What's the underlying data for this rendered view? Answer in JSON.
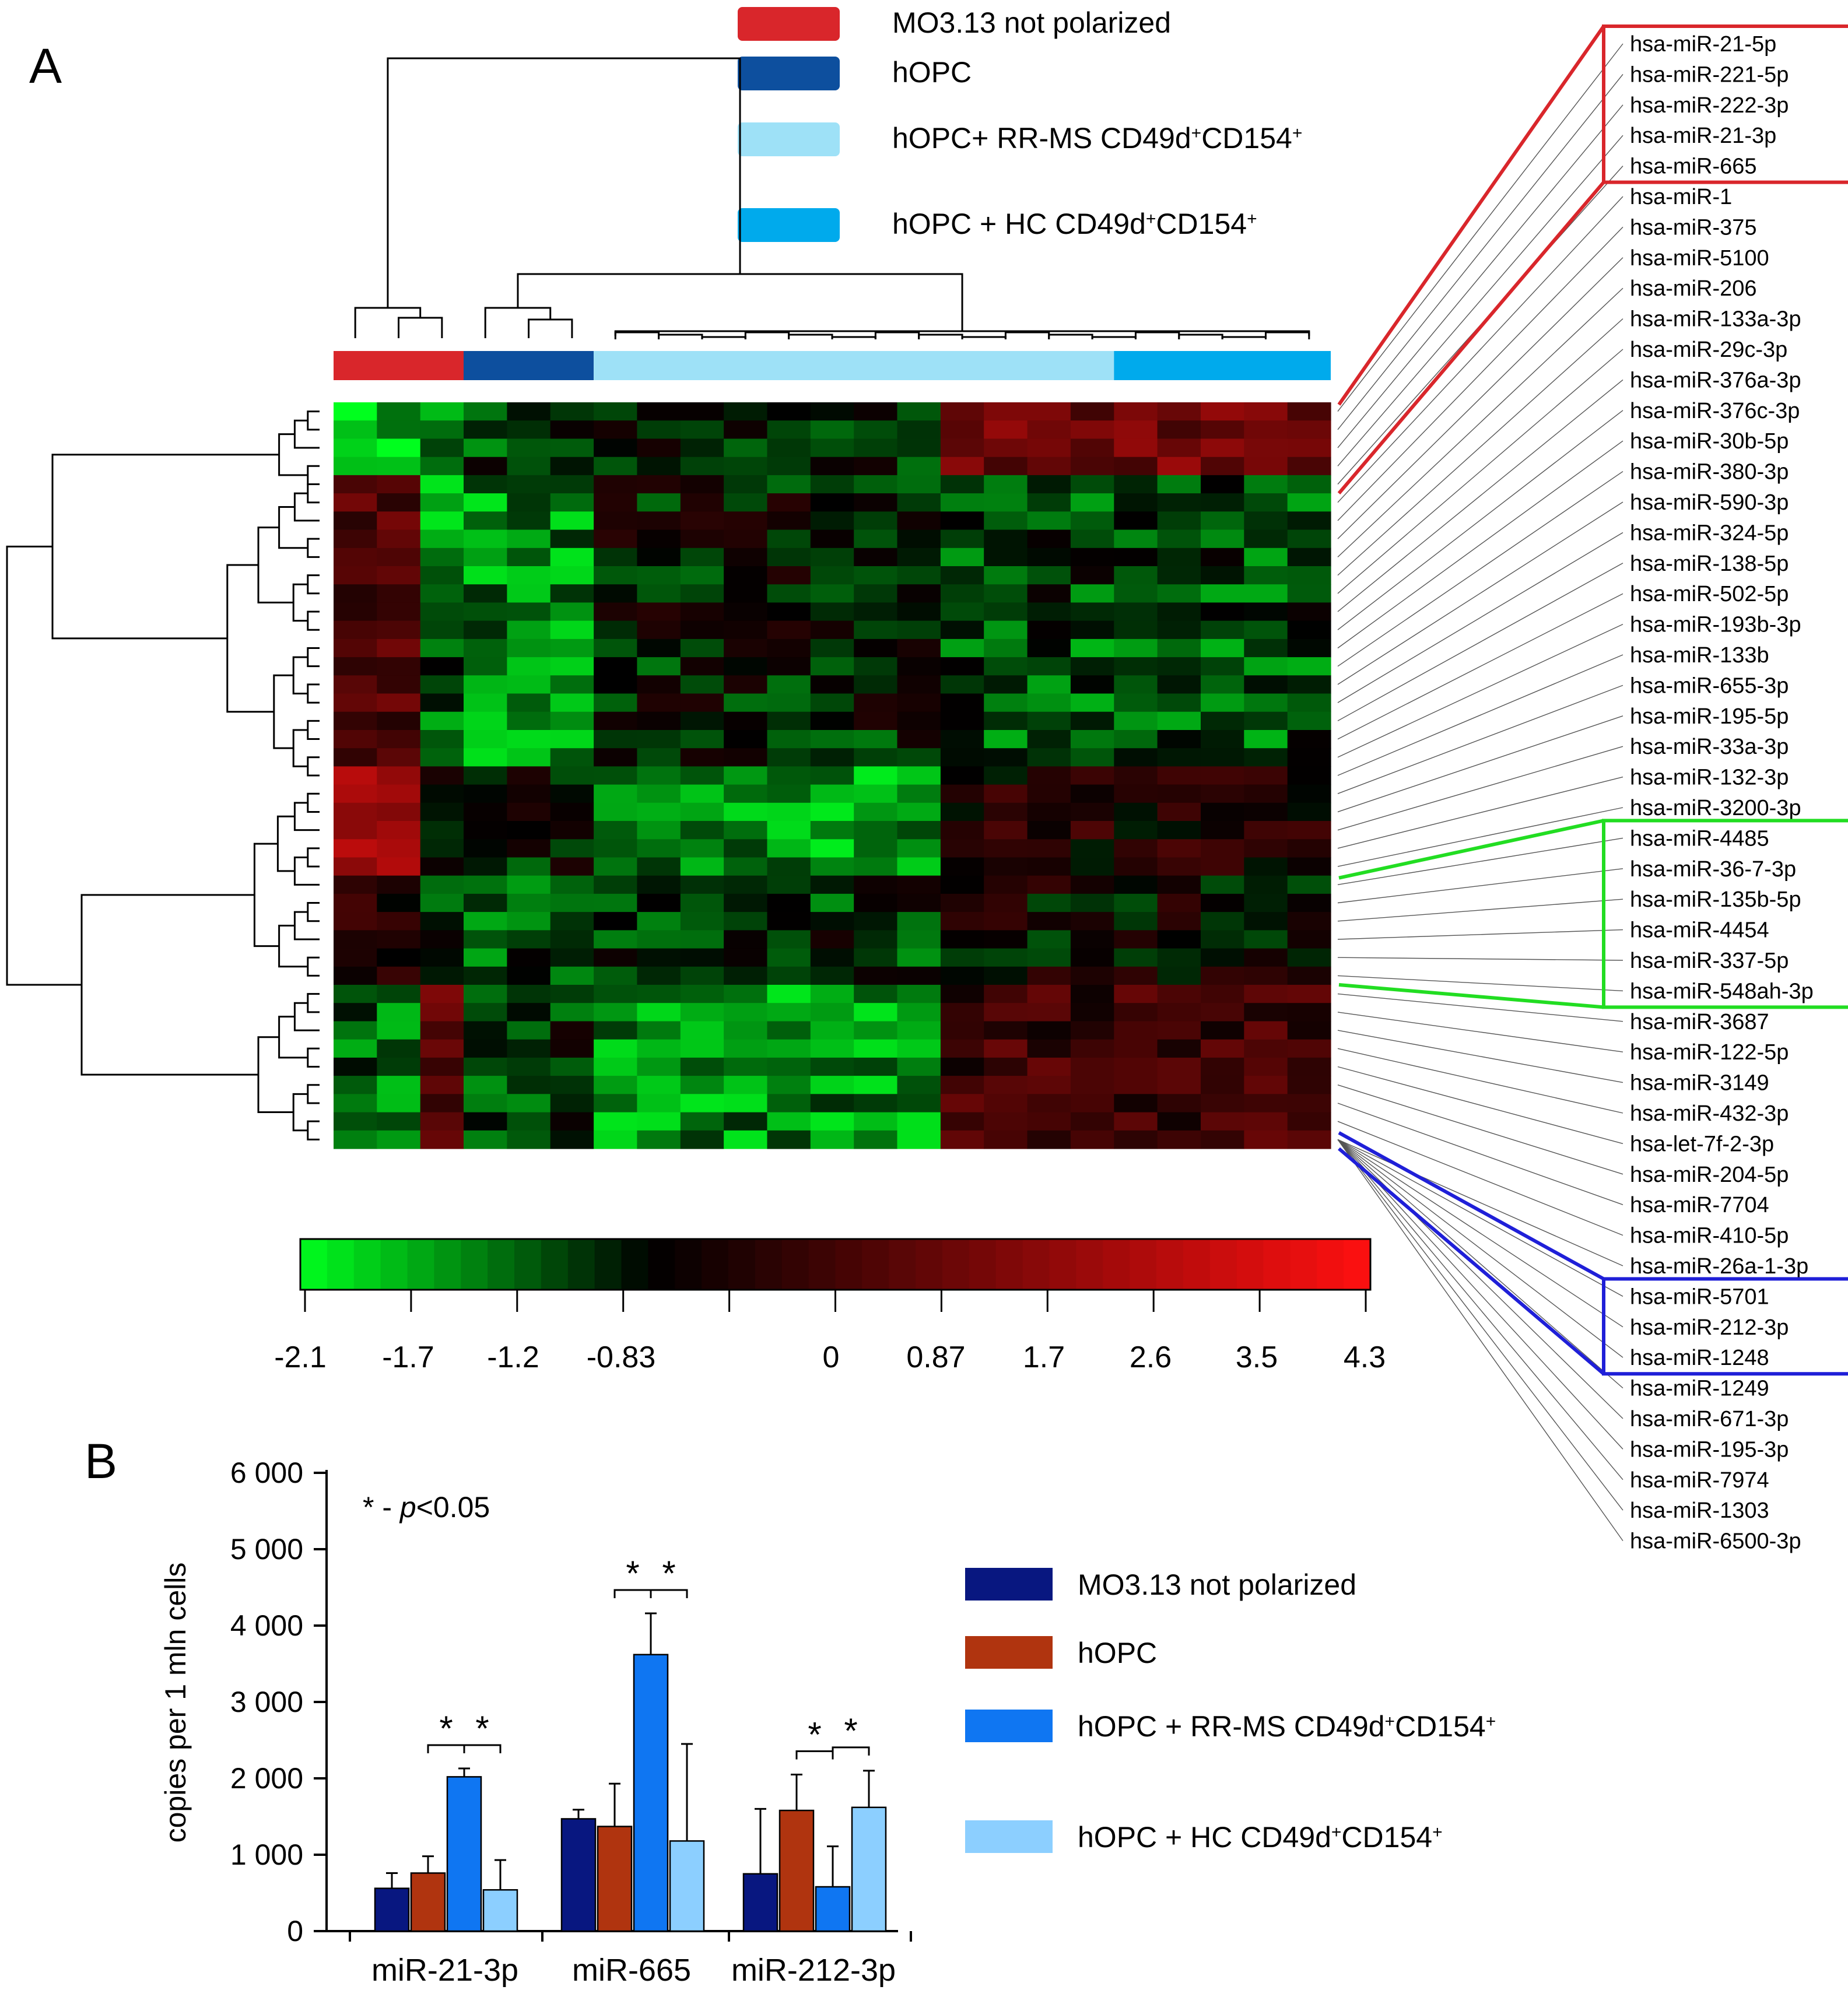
{
  "chart_data": [
    {
      "type": "heatmap",
      "panel": "A",
      "groups": [
        {
          "name": "MO3.13 not polarized",
          "color": "#d9262b",
          "n_columns": 3
        },
        {
          "name": "hOPC",
          "color": "#0d4f9e",
          "n_columns": 3
        },
        {
          "name": "hOPC+ RR-MS CD49d+CD154+",
          "color": "#9ee1f7",
          "n_columns": 12
        },
        {
          "name": "hOPC + HC CD49d+CD154+",
          "color": "#00aaec",
          "n_columns": 5
        }
      ],
      "legend": [
        {
          "label": "MO3.13 not polarized",
          "color": "#d9262b"
        },
        {
          "label": "hOPC",
          "color": "#0d4f9e"
        },
        {
          "label": "hOPC+ RR-MS CD49d",
          "sup1": "+",
          "mid": "CD154",
          "sup2": "+",
          "color": "#9ee1f7"
        },
        {
          "label": "hOPC + HC CD49d",
          "sup1": "+",
          "mid": "CD154",
          "sup2": "+",
          "color": "#00aaec"
        }
      ],
      "rows": [
        "hsa-miR-21-5p",
        "hsa-miR-221-5p",
        "hsa-miR-222-3p",
        "hsa-miR-21-3p",
        "hsa-miR-665",
        "hsa-miR-1",
        "hsa-miR-375",
        "hsa-miR-5100",
        "hsa-miR-206",
        "hsa-miR-133a-3p",
        "hsa-miR-29c-3p",
        "hsa-miR-376a-3p",
        "hsa-miR-376c-3p",
        "hsa-miR-30b-5p",
        "hsa-miR-380-3p",
        "hsa-miR-590-3p",
        "hsa-miR-324-5p",
        "hsa-miR-138-5p",
        "hsa-miR-502-5p",
        "hsa-miR-193b-3p",
        "hsa-miR-133b",
        "hsa-miR-655-3p",
        "hsa-miR-195-5p",
        "hsa-miR-33a-3p",
        "hsa-miR-132-3p",
        "hsa-miR-3200-3p",
        "hsa-miR-4485",
        "hsa-miR-36-7-3p",
        "hsa-miR-135b-5p",
        "hsa-miR-4454",
        "hsa-miR-337-5p",
        "hsa-miR-548ah-3p",
        "hsa-miR-3687",
        "hsa-miR-122-5p",
        "hsa-miR-3149",
        "hsa-miR-432-3p",
        "hsa-let-7f-2-3p",
        "hsa-miR-204-5p",
        "hsa-miR-7704",
        "hsa-miR-410-5p",
        "hsa-miR-26a-1-3p",
        "hsa-miR-5701",
        "hsa-miR-212-3p",
        "hsa-miR-1248",
        "hsa-miR-1249",
        "hsa-miR-671-3p",
        "hsa-miR-195-3p",
        "hsa-miR-7974",
        "hsa-miR-1303",
        "hsa-miR-6500-3p"
      ],
      "highlight_boxes": [
        {
          "color": "#d9262b",
          "first_row": 0,
          "last_row": 4
        },
        {
          "color": "#22dd22",
          "first_row": 26,
          "last_row": 31
        },
        {
          "color": "#1f1fd8",
          "first_row": 41,
          "last_row": 43
        }
      ],
      "color_scale": {
        "min": -2.1,
        "max": 4.3,
        "mid": 0,
        "low_color": "#00ff1e",
        "mid_color": "#000000",
        "high_color": "#ff1010",
        "tick_labels": [
          "-2.1",
          "-1.7",
          "-1.2",
          "-0.83",
          "0",
          "0.87",
          "1.7",
          "2.6",
          "3.5",
          "4.3"
        ]
      },
      "expression_pattern": {
        "row_blocks": [
          {
            "rows": [
              0,
              4
            ],
            "means": [
              -1.6,
              -1.2,
              -0.5,
              -0.3,
              1.8
            ]
          },
          {
            "rows": [
              4,
              13
            ],
            "means": [
              1.3,
              -1.3,
              -1.1,
              -0.1,
              -0.6
            ]
          },
          {
            "rows": [
              13,
              20
            ],
            "means": [
              1.3,
              -0.7,
              -1.1,
              -0.2,
              -0.7
            ]
          },
          {
            "rows": [
              20,
              26
            ],
            "means": [
              2.8,
              0.1,
              -0.1,
              -1.2,
              0.5
            ]
          },
          {
            "rows": [
              26,
              32
            ],
            "means": [
              0.6,
              -0.6,
              -0.6,
              -0.4,
              0.1
            ]
          },
          {
            "rows": [
              32,
              41
            ],
            "means": [
              -0.8,
              1.5,
              -0.4,
              -1.1,
              1.0
            ]
          }
        ],
        "column_groups": [
          [
            0,
            1
          ],
          [
            2,
            2
          ],
          [
            3,
            5
          ],
          [
            6,
            13
          ],
          [
            14,
            17
          ],
          [
            18,
            22
          ]
        ]
      }
    },
    {
      "type": "bar",
      "panel": "B",
      "categories": [
        "miR-21-3p",
        "miR-665",
        "miR-212-3p"
      ],
      "series": [
        {
          "name": "MO3.13 not polarized",
          "color": "#081780",
          "values": [
            560,
            1470,
            750
          ],
          "errors": [
            200,
            120,
            850
          ]
        },
        {
          "name": "hOPC",
          "color": "#b0340f",
          "values": [
            760,
            1370,
            1580
          ],
          "errors": [
            220,
            560,
            470
          ]
        },
        {
          "name": "hOPC + RR-MS CD49d+CD154+",
          "color": "#0f76f2",
          "values": [
            2020,
            3620,
            580
          ],
          "errors": [
            110,
            540,
            530
          ]
        },
        {
          "name": "hOPC + HC CD49d+CD154+",
          "color": "#8ccfff",
          "values": [
            540,
            1180,
            1620
          ],
          "errors": [
            390,
            1270,
            480
          ]
        }
      ],
      "legend": [
        {
          "label": "MO3.13 not polarized",
          "color": "#081780"
        },
        {
          "label": "hOPC",
          "color": "#b0340f"
        },
        {
          "label": "hOPC + RR-MS CD49d",
          "sup1": "+",
          "mid": "CD154",
          "sup2": "+",
          "color": "#0f76f2"
        },
        {
          "label": "hOPC + HC CD49d",
          "sup1": "+",
          "mid": "CD154",
          "sup2": "+",
          "color": "#8ccfff"
        }
      ],
      "significance": [
        {
          "category": 0,
          "from": 1,
          "to": 2,
          "label": "*"
        },
        {
          "category": 0,
          "from": 2,
          "to": 3,
          "label": "*"
        },
        {
          "category": 1,
          "from": 1,
          "to": 2,
          "label": "*"
        },
        {
          "category": 1,
          "from": 2,
          "to": 3,
          "label": "*"
        },
        {
          "category": 2,
          "from": 1,
          "to": 2,
          "label": "*"
        },
        {
          "category": 2,
          "from": 2,
          "to": 3,
          "label": "*"
        }
      ],
      "note": {
        "prefix": "* - ",
        "italic": "p",
        "suffix": "<0.05"
      },
      "ylabel": "copies per 1 mln cells",
      "xlabel": "",
      "ylim": [
        0,
        6000
      ],
      "yticks": [
        0,
        1000,
        2000,
        3000,
        4000,
        5000,
        6000
      ],
      "ytick_labels": [
        "0",
        "1 000",
        "2 000",
        "3 000",
        "4 000",
        "5 000",
        "6 000"
      ]
    }
  ],
  "panel_labels": [
    "A",
    "B"
  ]
}
